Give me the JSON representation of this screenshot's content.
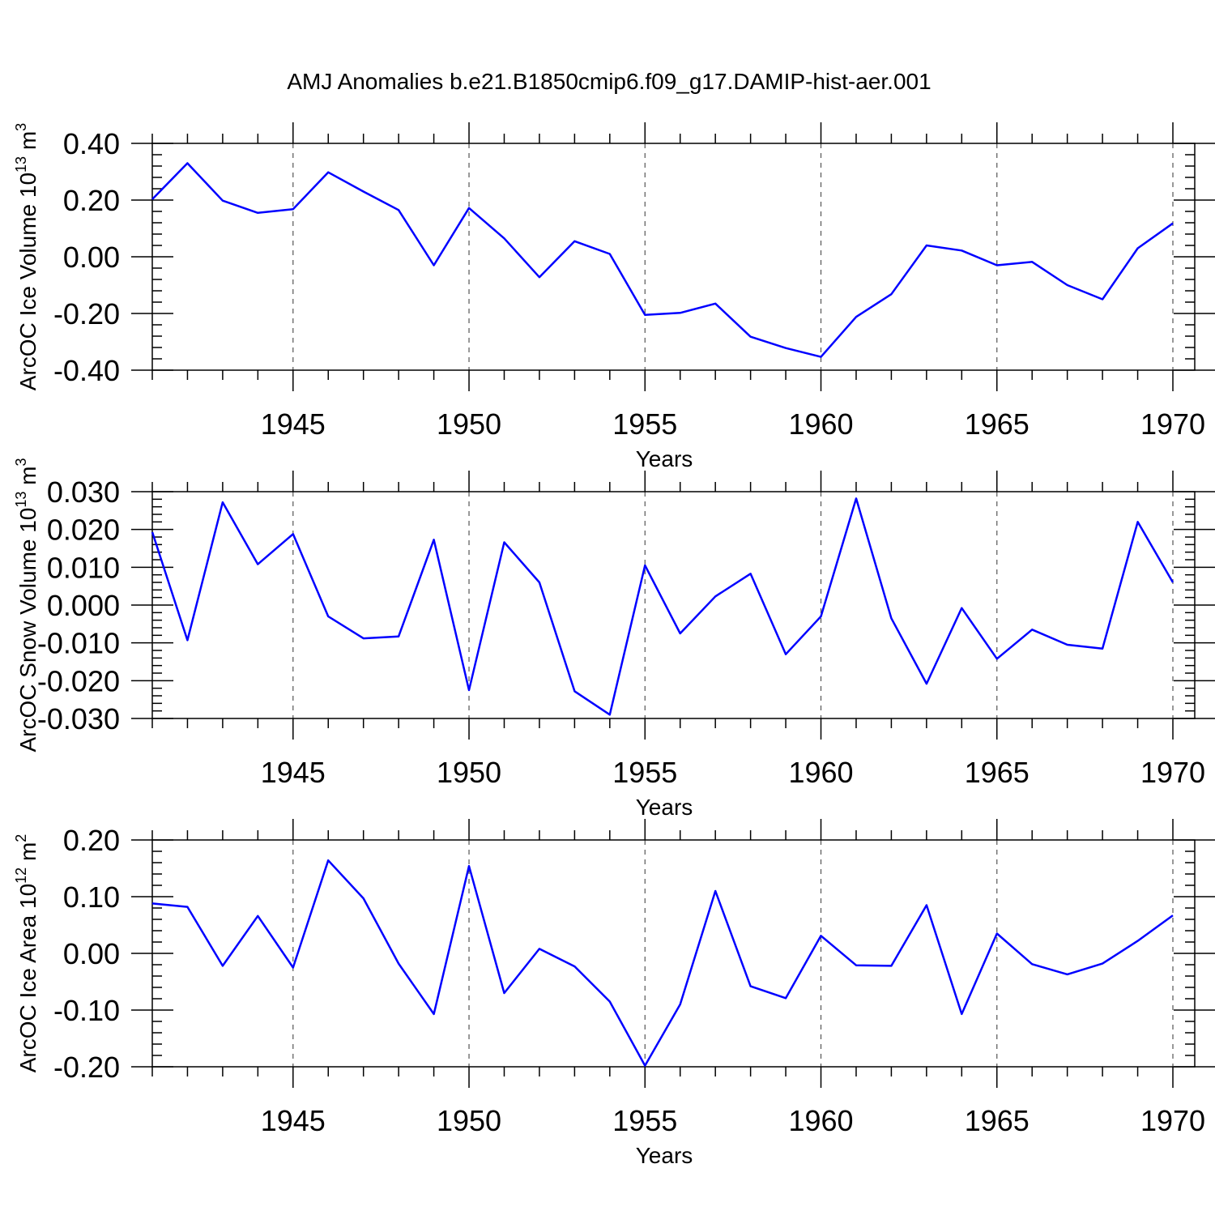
{
  "figure_title": "AMJ Anomalies b.e21.B1850cmip6.f09_g17.DAMIP-hist-aer.001",
  "colors": {
    "line": "#0000ff",
    "grid": "#555555"
  },
  "chart_data": [
    {
      "type": "line",
      "ylabel": "ArcOC Ice Volume 10",
      "ylabel_exp": "13",
      "ylabel_unit": " m",
      "ylabel_unit_exp": "3",
      "xlabel": "Years",
      "xlim": [
        1941,
        1970
      ],
      "ylim": [
        -0.4,
        0.4
      ],
      "yticks": [
        -0.4,
        -0.2,
        0.0,
        0.2,
        0.4
      ],
      "ytick_labels": [
        "-0.40",
        "-0.20",
        "0.00",
        "0.20",
        "0.40"
      ],
      "xticks": [
        1945,
        1950,
        1955,
        1960,
        1965,
        1970
      ],
      "xtick_labels": [
        "1945",
        "1950",
        "1955",
        "1960",
        "1965",
        "1970"
      ],
      "x": [
        1941,
        1942,
        1943,
        1944,
        1945,
        1946,
        1947,
        1948,
        1949,
        1950,
        1951,
        1952,
        1953,
        1954,
        1955,
        1956,
        1957,
        1958,
        1959,
        1960,
        1961,
        1962,
        1963,
        1964,
        1965,
        1966,
        1967,
        1968,
        1969,
        1970
      ],
      "values": [
        0.203,
        0.33,
        0.198,
        0.155,
        0.168,
        0.298,
        0.23,
        0.165,
        -0.03,
        0.172,
        0.065,
        -0.072,
        0.055,
        0.01,
        -0.205,
        -0.198,
        -0.165,
        -0.282,
        -0.322,
        -0.353,
        -0.212,
        -0.132,
        0.04,
        0.022,
        -0.03,
        -0.018,
        -0.1,
        -0.15,
        0.03,
        0.118
      ]
    },
    {
      "type": "line",
      "ylabel": "ArcOC Snow Volume 10",
      "ylabel_exp": "13",
      "ylabel_unit": " m",
      "ylabel_unit_exp": "3",
      "xlabel": "Years",
      "xlim": [
        1941,
        1970
      ],
      "ylim": [
        -0.03,
        0.03
      ],
      "yticks": [
        -0.03,
        -0.02,
        -0.01,
        0.0,
        0.01,
        0.02,
        0.03
      ],
      "ytick_labels": [
        "-0.030",
        "-0.020",
        "-0.010",
        "0.000",
        "0.010",
        "0.020",
        "0.030"
      ],
      "xticks": [
        1945,
        1950,
        1955,
        1960,
        1965,
        1970
      ],
      "xtick_labels": [
        "1945",
        "1950",
        "1955",
        "1960",
        "1965",
        "1970"
      ],
      "x": [
        1941,
        1942,
        1943,
        1944,
        1945,
        1946,
        1947,
        1948,
        1949,
        1950,
        1951,
        1952,
        1953,
        1954,
        1955,
        1956,
        1957,
        1958,
        1959,
        1960,
        1961,
        1962,
        1963,
        1964,
        1965,
        1966,
        1967,
        1968,
        1969,
        1970
      ],
      "values": [
        0.0193,
        -0.0093,
        0.0272,
        0.0108,
        0.0188,
        -0.003,
        -0.0088,
        -0.0083,
        0.0173,
        -0.0225,
        0.0166,
        0.006,
        -0.0228,
        -0.029,
        0.0105,
        -0.0075,
        0.0023,
        0.0083,
        -0.013,
        -0.003,
        0.0282,
        -0.0035,
        -0.0208,
        -0.0008,
        -0.0142,
        -0.0065,
        -0.0105,
        -0.0115,
        0.022,
        0.006
      ]
    },
    {
      "type": "line",
      "ylabel": "ArcOC Ice Area 10",
      "ylabel_exp": "12",
      "ylabel_unit": " m",
      "ylabel_unit_exp": "2",
      "xlabel": "Years",
      "xlim": [
        1941,
        1970
      ],
      "ylim": [
        -0.2,
        0.2
      ],
      "yticks": [
        -0.2,
        -0.1,
        0.0,
        0.1,
        0.2
      ],
      "ytick_labels": [
        "-0.20",
        "-0.10",
        "0.00",
        "0.10",
        "0.20"
      ],
      "xticks": [
        1945,
        1950,
        1955,
        1960,
        1965,
        1970
      ],
      "xtick_labels": [
        "1945",
        "1950",
        "1955",
        "1960",
        "1965",
        "1970"
      ],
      "x": [
        1941,
        1942,
        1943,
        1944,
        1945,
        1946,
        1947,
        1948,
        1949,
        1950,
        1951,
        1952,
        1953,
        1954,
        1955,
        1956,
        1957,
        1958,
        1959,
        1960,
        1961,
        1962,
        1963,
        1964,
        1965,
        1966,
        1967,
        1968,
        1969,
        1970
      ],
      "values": [
        0.088,
        0.082,
        -0.022,
        0.066,
        -0.025,
        0.164,
        0.097,
        -0.018,
        -0.107,
        0.154,
        -0.07,
        0.008,
        -0.023,
        -0.085,
        -0.198,
        -0.09,
        0.11,
        -0.058,
        -0.079,
        0.031,
        -0.021,
        -0.022,
        0.085,
        -0.107,
        0.035,
        -0.019,
        -0.037,
        -0.018,
        0.022,
        0.067
      ]
    }
  ]
}
